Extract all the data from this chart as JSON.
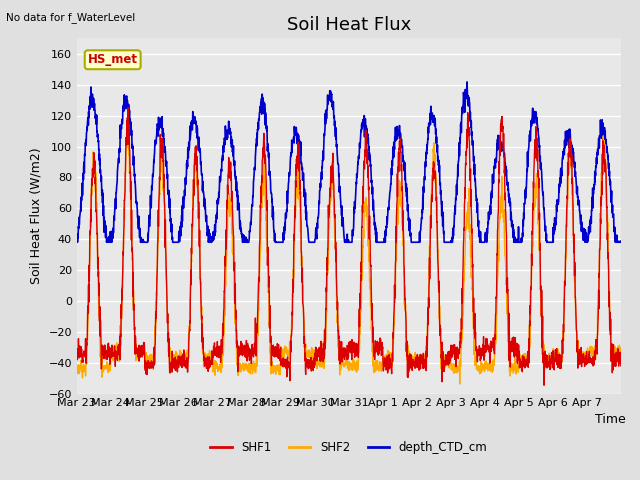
{
  "title": "Soil Heat Flux",
  "top_left_text": "No data for f_WaterLevel",
  "annotation_text": "HS_met",
  "xlabel": "Time",
  "ylabel": "Soil Heat Flux (W/m2)",
  "ylim": [
    -60,
    170
  ],
  "yticks": [
    -60,
    -40,
    -20,
    0,
    20,
    40,
    60,
    80,
    100,
    120,
    140,
    160
  ],
  "background_color": "#e0e0e0",
  "plot_bg_color": "#e8e8e8",
  "shf1_color": "#dd0000",
  "shf2_color": "#ffaa00",
  "depth_color": "#0000cc",
  "legend_items": [
    "SHF1",
    "SHF2",
    "depth_CTD_cm"
  ],
  "n_days": 16,
  "points_per_day": 144,
  "annotation_box_color": "#ffffcc",
  "annotation_border_color": "#aaaa00",
  "title_fontsize": 13,
  "label_fontsize": 9,
  "tick_fontsize": 8
}
